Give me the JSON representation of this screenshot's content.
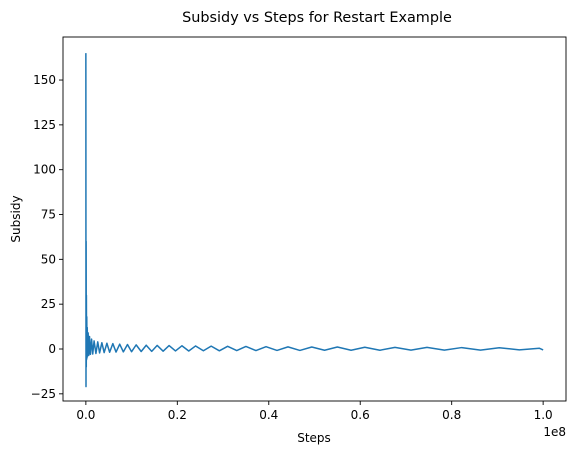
{
  "chart_data": {
    "type": "line",
    "title": "Subsidy vs Steps for Restart Example",
    "xlabel": "Steps",
    "ylabel": "Subsidy",
    "x_offset_label": "1e8",
    "x_scale": 100000000,
    "xlim": [
      -5000000,
      105000000
    ],
    "ylim": [
      -29,
      174
    ],
    "x_ticks": [
      0,
      20000000,
      40000000,
      60000000,
      80000000,
      100000000
    ],
    "x_tick_labels": [
      "0.0",
      "0.2",
      "0.4",
      "0.6",
      "0.8",
      "1.0"
    ],
    "y_ticks": [
      -25,
      0,
      25,
      50,
      75,
      100,
      125,
      150
    ],
    "y_tick_labels": [
      "−25",
      "0",
      "25",
      "50",
      "75",
      "100",
      "125",
      "150"
    ],
    "grid": false,
    "legend": "none",
    "series": [
      {
        "color": "#1f77b4",
        "x": [
          0,
          30000,
          60000,
          90000,
          120000,
          150000,
          200000,
          250000,
          300000,
          400000,
          500000,
          650000,
          800000,
          1000000,
          1250000,
          1500000,
          1800000,
          2200000,
          2600000,
          3000000,
          3500000,
          4000000,
          4600000,
          5200000,
          5900000,
          6600000,
          7400000,
          8200000,
          9100000,
          10000000,
          11000000,
          12100000,
          13200000,
          14400000,
          15600000,
          16900000,
          18200000,
          19600000,
          21000000,
          22500000,
          24000000,
          25700000,
          27400000,
          29200000,
          31000000,
          33000000,
          35000000,
          37200000,
          39400000,
          41800000,
          44200000,
          46800000,
          49400000,
          52200000,
          55000000,
          58000000,
          61000000,
          64300000,
          67600000,
          71100000,
          74600000,
          78400000,
          82200000,
          86300000,
          90400000,
          94800000,
          99200000,
          100000000
        ],
        "y": [
          165,
          -21,
          60,
          -10,
          30,
          -6,
          18,
          -5,
          12,
          -4,
          9,
          -3.5,
          7,
          -3,
          5.5,
          -2.8,
          4.5,
          -2.5,
          4,
          -2.2,
          3.5,
          -2,
          3.2,
          -1.8,
          3,
          -1.7,
          2.7,
          -1.6,
          2.5,
          -1.5,
          2.3,
          -1.4,
          2.1,
          -1.3,
          2,
          -1.2,
          1.9,
          -1.1,
          1.8,
          -1.1,
          1.7,
          -1,
          1.6,
          -1,
          1.5,
          -0.9,
          1.4,
          -0.9,
          1.3,
          -0.8,
          1.2,
          -0.8,
          1.1,
          -0.7,
          1.1,
          -0.7,
          1,
          -0.7,
          0.9,
          -0.6,
          0.9,
          -0.6,
          0.8,
          -0.6,
          0.7,
          -0.5,
          0.4,
          -0.5
        ]
      }
    ]
  }
}
